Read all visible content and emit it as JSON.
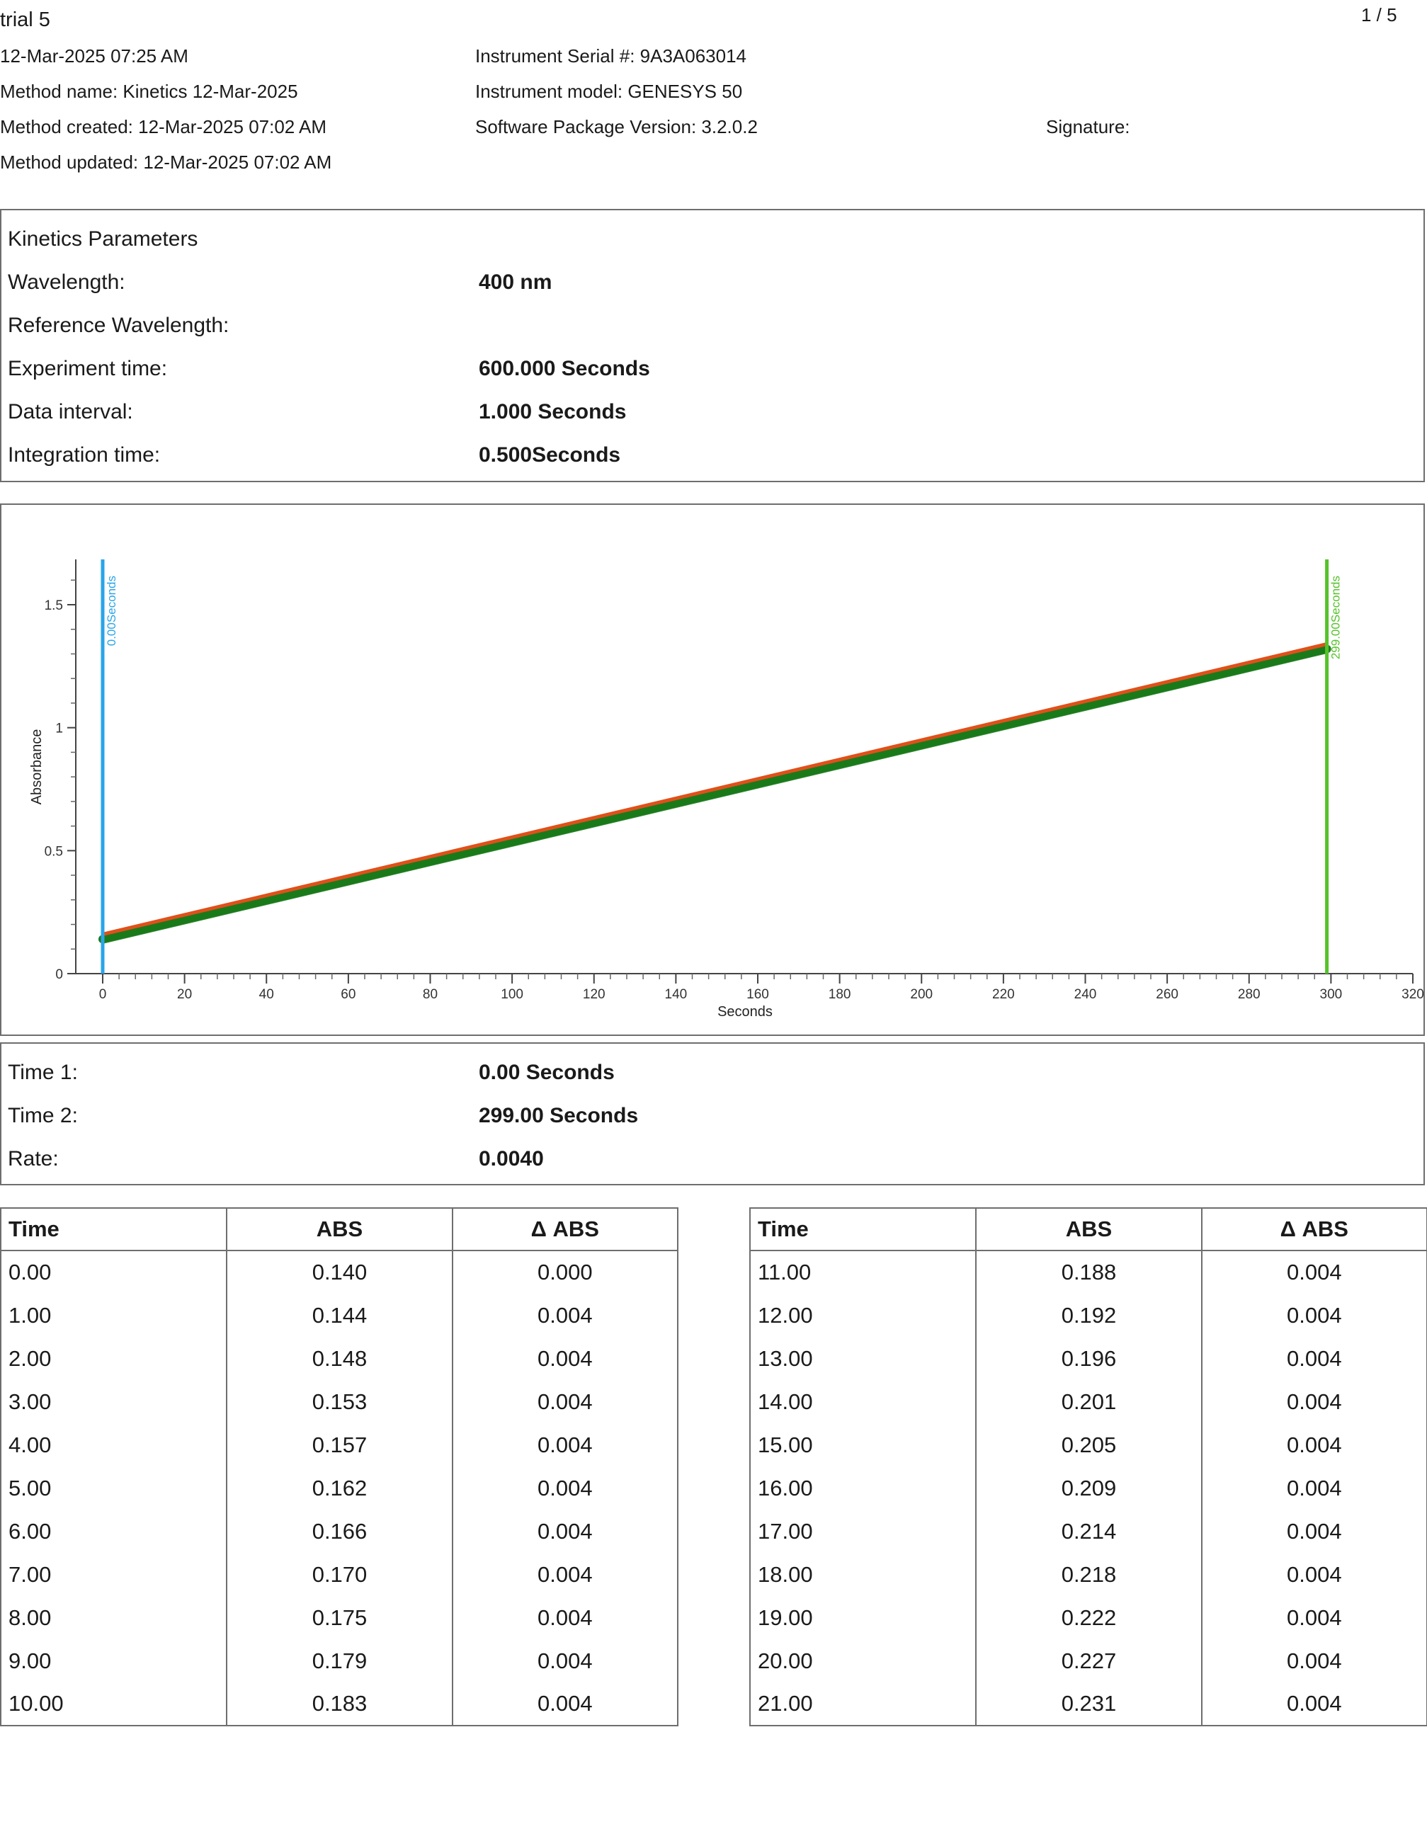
{
  "header": {
    "title": "trial 5",
    "page_number": "1 / 5",
    "datetime": "12-Mar-2025 07:25 AM",
    "method_name": "Method name: Kinetics 12-Mar-2025",
    "method_created": "Method created: 12-Mar-2025 07:02 AM",
    "method_updated": "Method updated: 12-Mar-2025 07:02 AM",
    "serial": "Instrument Serial #: 9A3A063014",
    "model": "Instrument model: GENESYS 50",
    "software": "Software Package Version: 3.2.0.2",
    "signature": "Signature:"
  },
  "params": {
    "heading": "Kinetics Parameters",
    "rows": [
      {
        "label": "Wavelength:",
        "value": "400 nm"
      },
      {
        "label": "Reference Wavelength:",
        "value": ""
      },
      {
        "label": "Experiment time:",
        "value": "600.000 Seconds"
      },
      {
        "label": "Data interval:",
        "value": "1.000 Seconds"
      },
      {
        "label": "Integration time:",
        "value": "0.500Seconds"
      }
    ]
  },
  "results": {
    "rows": [
      {
        "label": "Time 1:",
        "value": "0.00 Seconds"
      },
      {
        "label": "Time 2:",
        "value": "299.00 Seconds"
      },
      {
        "label": "Rate:",
        "value": "0.0040"
      }
    ]
  },
  "table": {
    "headers": [
      "Time",
      "ABS",
      "Δ ABS"
    ],
    "left": [
      [
        "0.00",
        "0.140",
        "0.000"
      ],
      [
        "1.00",
        "0.144",
        "0.004"
      ],
      [
        "2.00",
        "0.148",
        "0.004"
      ],
      [
        "3.00",
        "0.153",
        "0.004"
      ],
      [
        "4.00",
        "0.157",
        "0.004"
      ],
      [
        "5.00",
        "0.162",
        "0.004"
      ],
      [
        "6.00",
        "0.166",
        "0.004"
      ],
      [
        "7.00",
        "0.170",
        "0.004"
      ],
      [
        "8.00",
        "0.175",
        "0.004"
      ],
      [
        "9.00",
        "0.179",
        "0.004"
      ],
      [
        "10.00",
        "0.183",
        "0.004"
      ]
    ],
    "right": [
      [
        "11.00",
        "0.188",
        "0.004"
      ],
      [
        "12.00",
        "0.192",
        "0.004"
      ],
      [
        "13.00",
        "0.196",
        "0.004"
      ],
      [
        "14.00",
        "0.201",
        "0.004"
      ],
      [
        "15.00",
        "0.205",
        "0.004"
      ],
      [
        "16.00",
        "0.209",
        "0.004"
      ],
      [
        "17.00",
        "0.214",
        "0.004"
      ],
      [
        "18.00",
        "0.218",
        "0.004"
      ],
      [
        "19.00",
        "0.222",
        "0.004"
      ],
      [
        "20.00",
        "0.227",
        "0.004"
      ],
      [
        "21.00",
        "0.231",
        "0.004"
      ]
    ]
  },
  "chart_data": {
    "type": "line",
    "xlabel": "Seconds",
    "ylabel": "Absorbance",
    "xlim": [
      0,
      320
    ],
    "ylim": [
      0,
      1.7
    ],
    "xticks": [
      0,
      20,
      40,
      60,
      80,
      100,
      120,
      140,
      160,
      180,
      200,
      220,
      240,
      260,
      280,
      300,
      320
    ],
    "yticks": [
      0,
      0.5,
      1,
      1.5
    ],
    "ytick_labels": [
      "0",
      "0.5",
      "1",
      "1.5"
    ],
    "series": [
      {
        "color": "#1a7a1a",
        "x_start": 0,
        "x_end": 299,
        "y_start": 0.14,
        "y_end": 1.32,
        "style": "data"
      },
      {
        "color": "#e0501a",
        "x_start": 0,
        "x_end": 299,
        "y_start": 0.16,
        "y_end": 1.34,
        "style": "fit"
      }
    ],
    "markers": [
      {
        "x": 0,
        "label": "0.00Seconds",
        "color": "#2aa5e8"
      },
      {
        "x": 299,
        "label": "299.00Seconds",
        "color": "#55c22a"
      }
    ]
  }
}
